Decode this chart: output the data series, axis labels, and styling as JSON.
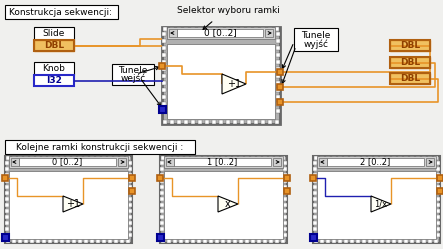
{
  "bg_color": "#f0f0ee",
  "title1": "Konstrukcja sekwencji:",
  "title2": "Kolejne ramki konstrukcji sekwencji :",
  "sel_label": "Selektor wyboru ramki",
  "tun_in1": "Tunele",
  "tun_in2": "wejść",
  "tun_out1": "Tunele",
  "tun_out2": "wyjść",
  "slide_lbl": "Slide",
  "dbl_lbl": "DBL",
  "knob_lbl": "Knob",
  "i32_lbl": "I32",
  "frame0": "0 [0..2]",
  "frame1": "1 [0..2]",
  "frame2": "2 [0..2]",
  "orange": "#e89428",
  "dark_orange": "#b06010",
  "orange_fill": "#f0b840",
  "blue_wire": "#2020b0",
  "blue_tunnel": "#2828c8",
  "blue_border": "#000090",
  "gray_frame": "#b0b0b0",
  "gray_med": "#909090",
  "gray_dark": "#686868",
  "gray_light": "#d0d0d0",
  "dot_gray": "#888888",
  "white": "#ffffff",
  "dbl_fill": "#f0c060",
  "node_fill": "#fffff4",
  "black": "#000000"
}
